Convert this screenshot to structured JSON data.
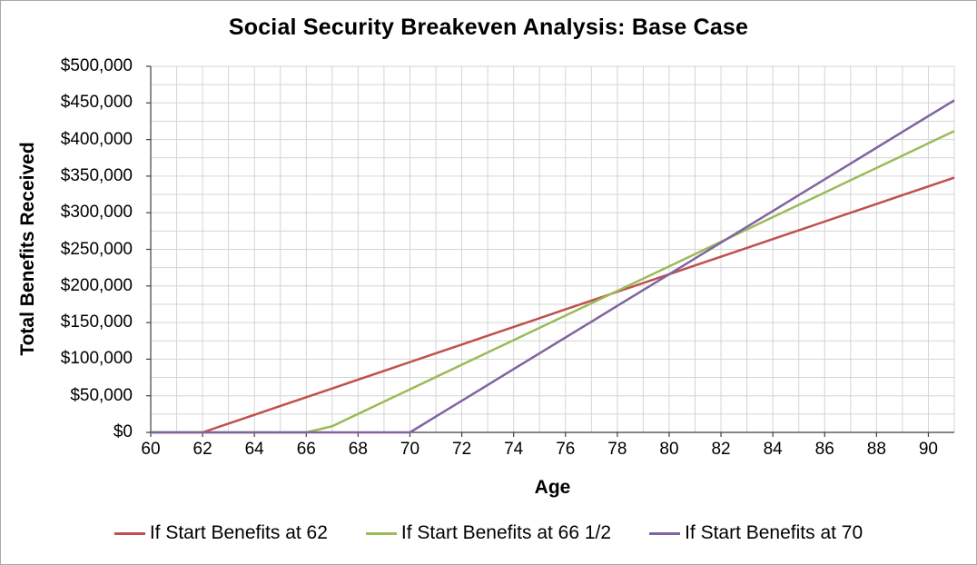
{
  "frame": {
    "background": "#FFFFFF",
    "border_color": "#A9A9A9"
  },
  "chart_data": {
    "type": "line",
    "title": "Social Security Breakeven Analysis: Base Case",
    "xlabel": "Age",
    "ylabel": "Total Benefits Received",
    "xlim": [
      60,
      91
    ],
    "ylim": [
      0,
      500000
    ],
    "x_major_tick_step": 2,
    "x_minor_grid_step": 1,
    "y_major_tick_step": 50000,
    "y_minor_grid_step": 25000,
    "grid_on": true,
    "grid_color": "#D4D4D4",
    "axis_color": "#3F3F3F",
    "legend_position": "bottom",
    "x_tick_labels": [
      "60",
      "62",
      "64",
      "66",
      "68",
      "70",
      "72",
      "74",
      "76",
      "78",
      "80",
      "82",
      "84",
      "86",
      "88",
      "90"
    ],
    "y_tick_labels": [
      "$0",
      "$50,000",
      "$100,000",
      "$150,000",
      "$200,000",
      "$250,000",
      "$300,000",
      "$350,000",
      "$400,000",
      "$450,000",
      "$500,000"
    ],
    "ages": [
      60,
      61,
      62,
      63,
      64,
      65,
      66,
      67,
      68,
      69,
      70,
      71,
      72,
      73,
      74,
      75,
      76,
      77,
      78,
      79,
      80,
      81,
      82,
      83,
      84,
      85,
      86,
      87,
      88,
      89,
      90,
      91
    ],
    "series": [
      {
        "name": "If Start Benefits at 62",
        "color": "#C0504D",
        "start_age": 62,
        "values": [
          0,
          0,
          0,
          12000,
          24000,
          36000,
          48000,
          60000,
          72000,
          84000,
          96000,
          108000,
          120000,
          132000,
          144000,
          156000,
          168000,
          180000,
          192000,
          204000,
          216000,
          228000,
          240000,
          252000,
          264000,
          276000,
          288000,
          300000,
          312000,
          324000,
          336000,
          348000
        ]
      },
      {
        "name": "If Start Benefits at 66 1/2",
        "color": "#9BBB59",
        "start_age": 66.5,
        "values": [
          0,
          0,
          0,
          0,
          0,
          0,
          0,
          8400,
          25200,
          42000,
          58800,
          75600,
          92400,
          109200,
          126000,
          142800,
          159600,
          176400,
          193200,
          210000,
          226800,
          243600,
          260400,
          277200,
          294000,
          310800,
          327600,
          344400,
          361200,
          378000,
          394800,
          411600
        ]
      },
      {
        "name": "If Start Benefits at 70",
        "color": "#8064A2",
        "start_age": 70,
        "values": [
          0,
          0,
          0,
          0,
          0,
          0,
          0,
          0,
          0,
          0,
          0,
          21600,
          43200,
          64800,
          86400,
          108000,
          129600,
          151200,
          172800,
          194400,
          216000,
          237600,
          259200,
          280800,
          302400,
          324000,
          345600,
          367200,
          388800,
          410400,
          432000,
          453600
        ]
      }
    ]
  }
}
